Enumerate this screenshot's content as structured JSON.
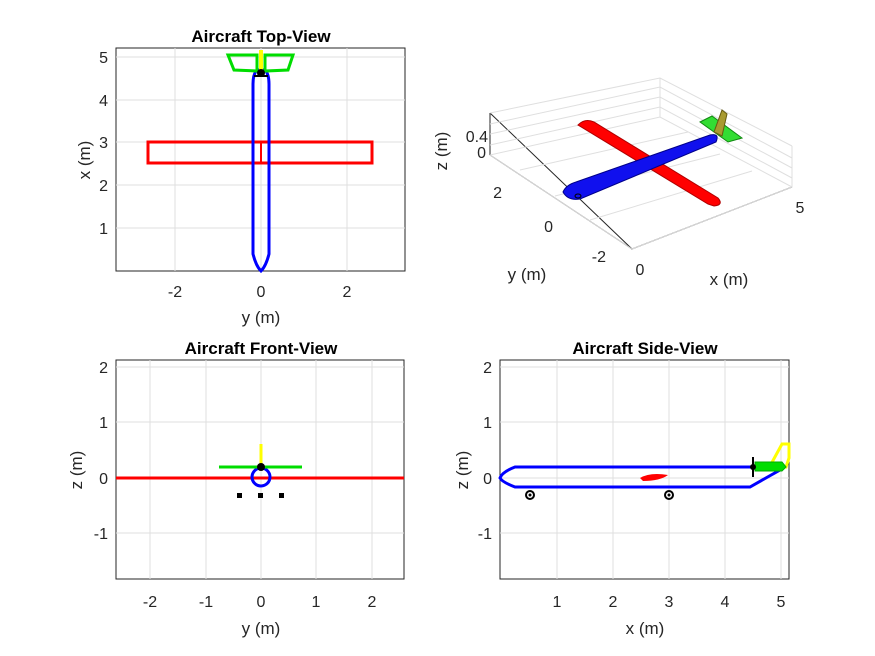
{
  "figure": {
    "panels": [
      {
        "id": "top-view",
        "title": "Aircraft Top-View",
        "xlabel": "y (m)",
        "ylabel": "x (m)",
        "xticks": [
          "-2",
          "0",
          "2"
        ],
        "yticks": [
          "1",
          "2",
          "3",
          "4",
          "5"
        ]
      },
      {
        "id": "3d-view",
        "title": "",
        "xlabel": "x (m)",
        "ylabel": "y (m)",
        "zlabel": "z (m)",
        "xticks": [
          "0",
          "5"
        ],
        "yticks": [
          "-2",
          "0",
          "2"
        ],
        "zticks": [
          "0",
          "0.4"
        ]
      },
      {
        "id": "front-view",
        "title": "Aircraft Front-View",
        "xlabel": "y (m)",
        "ylabel": "z (m)",
        "xticks": [
          "-2",
          "-1",
          "0",
          "1",
          "2"
        ],
        "yticks": [
          "-1",
          "0",
          "1",
          "2"
        ]
      },
      {
        "id": "side-view",
        "title": "Aircraft Side-View",
        "xlabel": "x (m)",
        "ylabel": "z (m)",
        "xticks": [
          "1",
          "2",
          "3",
          "4",
          "5"
        ],
        "yticks": [
          "-1",
          "0",
          "1",
          "2"
        ]
      }
    ]
  },
  "colors": {
    "wing": "#ff0000",
    "fuselage": "#0000ff",
    "horizontal_tail": "#00dd00",
    "vertical_tail": "#ffff00",
    "marker": "#000000"
  }
}
